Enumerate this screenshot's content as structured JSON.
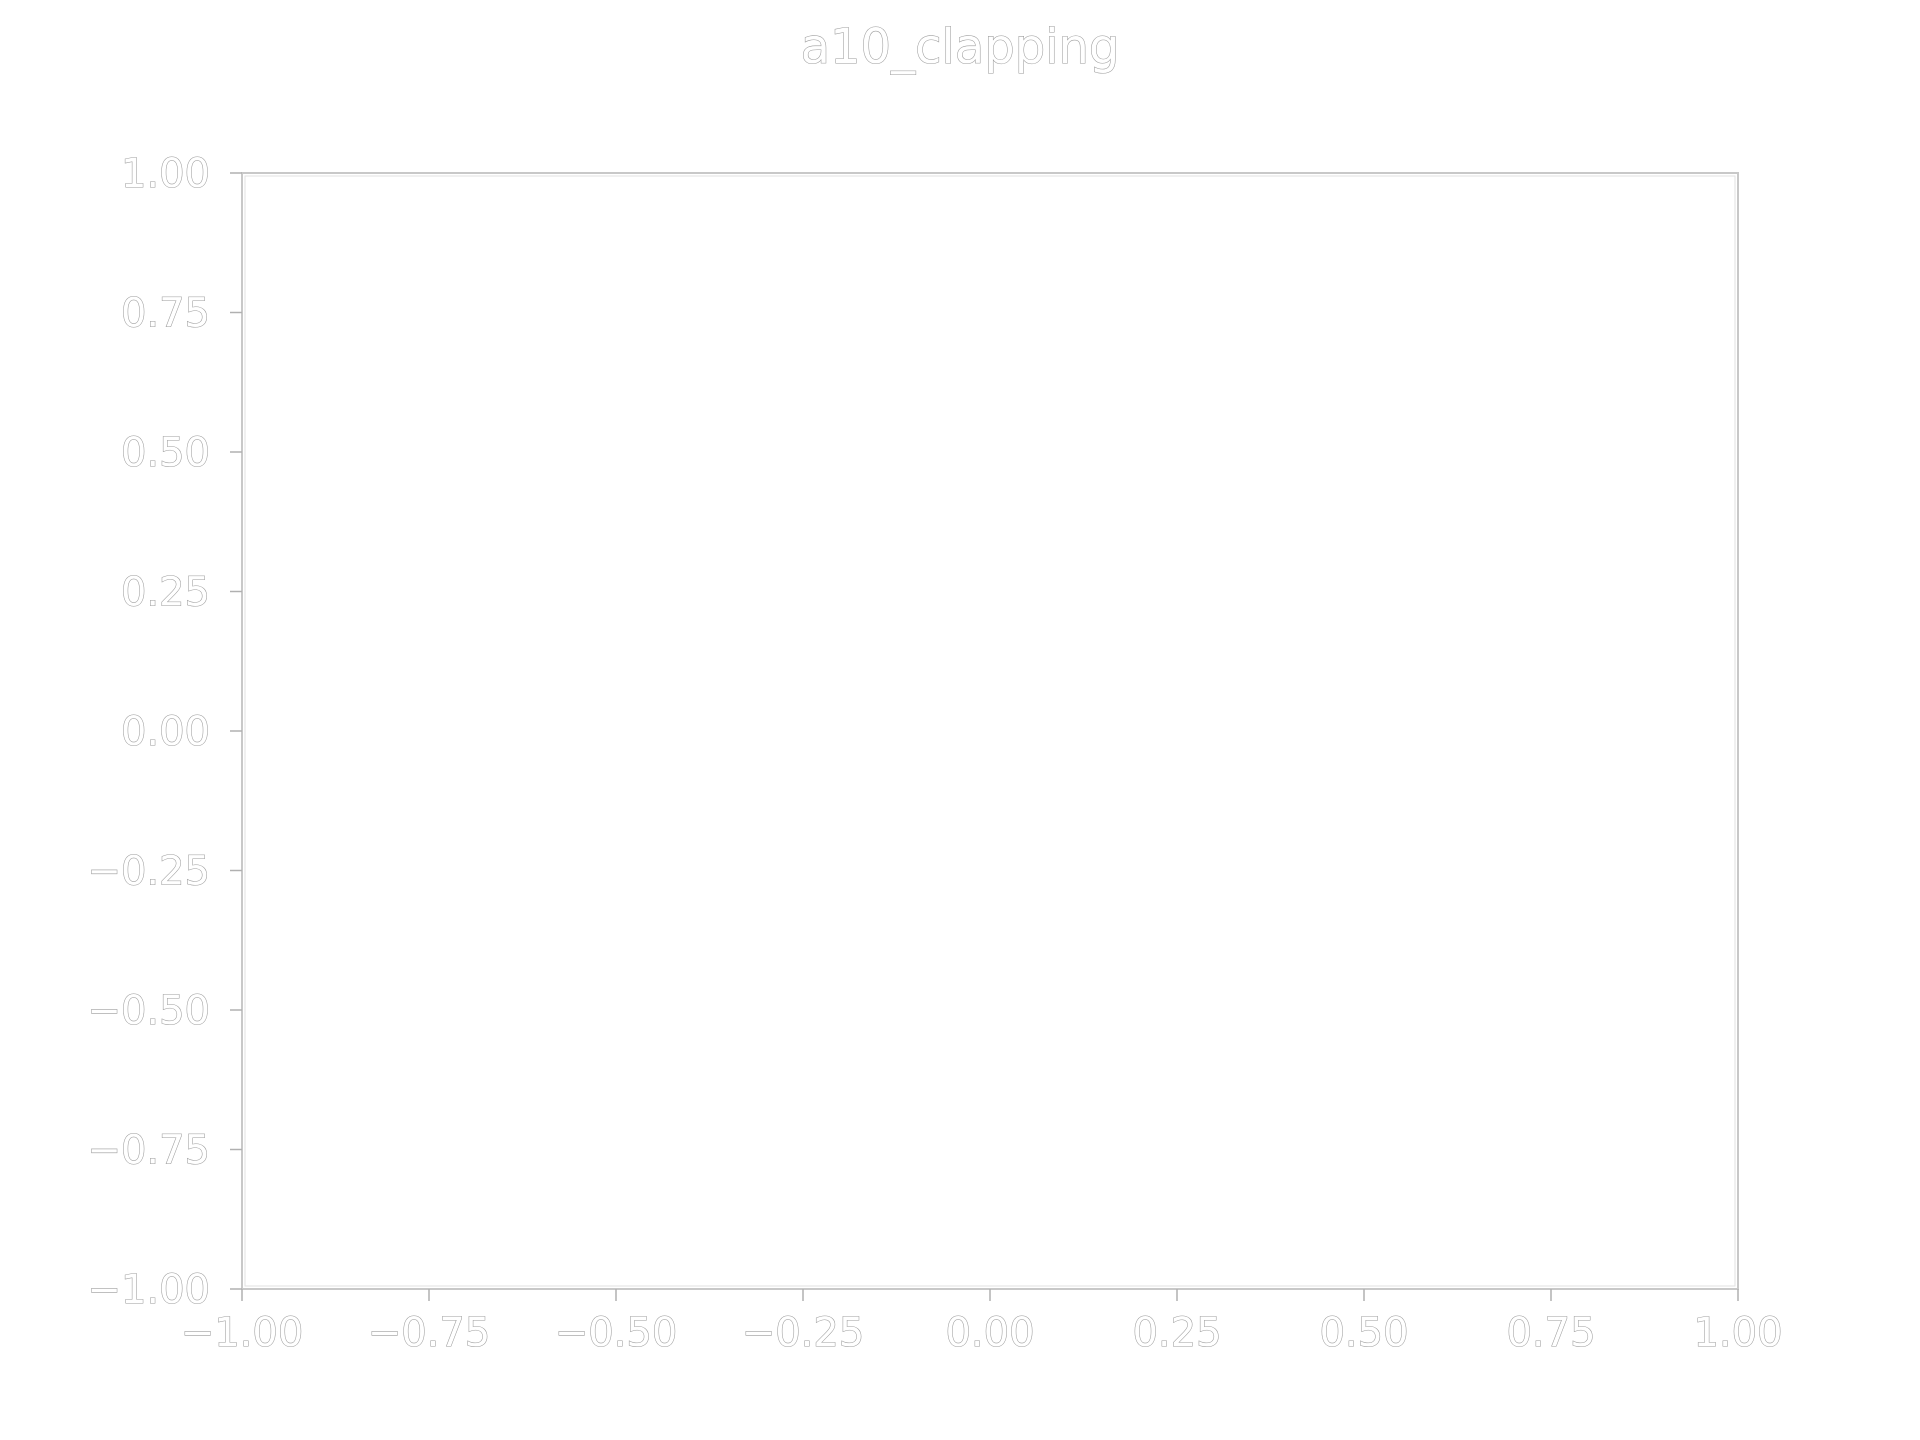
{
  "chart_data": {
    "type": "line",
    "title": "a10_clapping",
    "xlabel": "",
    "ylabel": "",
    "xlim": [
      -1.0,
      1.0
    ],
    "ylim": [
      -1.0,
      1.0
    ],
    "x_ticks": [
      -1.0,
      -0.75,
      -0.5,
      -0.25,
      0.0,
      0.25,
      0.5,
      0.75,
      1.0
    ],
    "y_ticks": [
      -1.0,
      -0.75,
      -0.5,
      -0.25,
      0.0,
      0.25,
      0.5,
      0.75,
      1.0
    ],
    "x_tick_labels": [
      "−1.00",
      "−0.75",
      "−0.50",
      "−0.25",
      "0.00",
      "0.25",
      "0.50",
      "0.75",
      "1.00"
    ],
    "y_tick_labels": [
      "−1.00",
      "−0.75",
      "−0.50",
      "−0.25",
      "0.00",
      "0.25",
      "0.50",
      "0.75",
      "1.00"
    ],
    "series": [],
    "grid": false,
    "legend": "none"
  },
  "colors": {
    "frame": "#c8c8c8",
    "text_outline": "#9a9a9a",
    "background": "#ffffff"
  }
}
